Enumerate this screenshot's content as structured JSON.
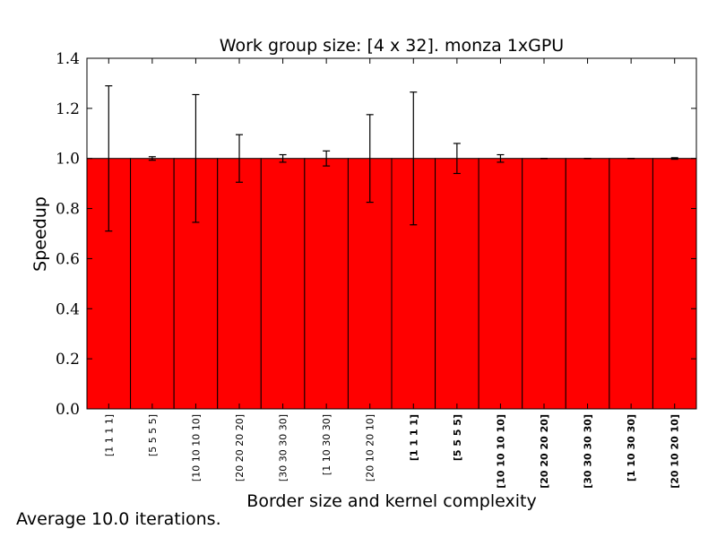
{
  "chart_data": {
    "type": "bar",
    "title": "Work group size: [4 x 32]. monza 1xGPU",
    "xlabel": "Border size and kernel complexity",
    "ylabel": "Speedup",
    "ylim": [
      0,
      1.4
    ],
    "yticks": [
      "0.0",
      "0.2",
      "0.4",
      "0.6",
      "0.8",
      "1.0",
      "1.2",
      "1.4"
    ],
    "grid": false,
    "bar_color": "#ff0000",
    "categories": [
      "[1 1 1 1]",
      "[5 5 5 5]",
      "[10 10 10 10]",
      "[20 20 20 20]",
      "[30 30 30 30]",
      "[1 10 30 30]",
      "[20 10 20 10]",
      "[1 1 1 1]",
      "[5 5 5 5]",
      "[10 10 10 10]",
      "[20 20 20 20]",
      "[30 30 30 30]",
      "[1 10 30 30]",
      "[20 10 20 10]"
    ],
    "category_bold": [
      false,
      false,
      false,
      false,
      false,
      false,
      false,
      true,
      true,
      true,
      true,
      true,
      true,
      true
    ],
    "values": [
      1.0,
      1.0,
      1.0,
      1.0,
      1.0,
      1.0,
      1.0,
      1.0,
      1.0,
      1.0,
      1.0,
      1.0,
      1.0,
      1.0
    ],
    "errors": [
      0.29,
      0.007,
      0.255,
      0.095,
      0.015,
      0.03,
      0.175,
      0.265,
      0.06,
      0.015,
      0.0,
      0.0,
      0.0,
      0.003
    ]
  },
  "footnote": "Average 10.0 iterations."
}
